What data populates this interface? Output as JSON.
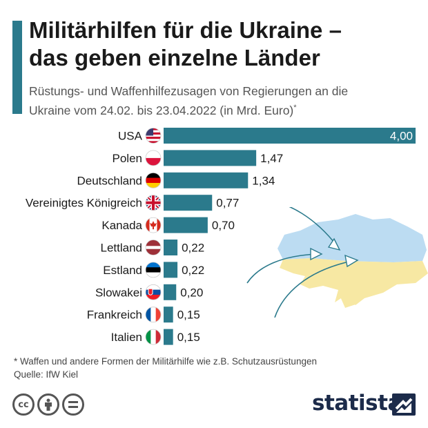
{
  "header": {
    "title_line1": "Militärhilfen für die Ukraine –",
    "title_line2": "das geben einzelne Länder",
    "subtitle_line1": "Rüstungs- und Waffenhilfezusagen von Regierungen an die",
    "subtitle_line2": "Ukraine vom 24.02. bis 23.04.2022 (in Mrd. Euro)",
    "subtitle_mark": "*"
  },
  "chart_data": {
    "type": "bar",
    "orientation": "horizontal",
    "categories": [
      "USA",
      "Polen",
      "Deutschland",
      "Vereinigtes Königreich",
      "Kanada",
      "Lettland",
      "Estland",
      "Slowakei",
      "Frankreich",
      "Italien"
    ],
    "values": [
      4.0,
      1.47,
      1.34,
      0.77,
      0.7,
      0.22,
      0.22,
      0.2,
      0.15,
      0.15
    ],
    "value_labels": [
      "4,00",
      "1,47",
      "1,34",
      "0,77",
      "0,70",
      "0,22",
      "0,22",
      "0,20",
      "0,15",
      "0,15"
    ],
    "flags": [
      "us-flag-icon",
      "pl-flag-icon",
      "de-flag-icon",
      "gb-flag-icon",
      "ca-flag-icon",
      "lv-flag-icon",
      "ee-flag-icon",
      "sk-flag-icon",
      "fr-flag-icon",
      "it-flag-icon"
    ],
    "xlim": [
      0,
      4
    ],
    "bar_color": "#2b7a8c",
    "grid": false
  },
  "footer": {
    "footnote": "* Waffen und andere Formen der Militärhilfe wie z.B. Schutzausrüstungen",
    "source": "Quelle: IfW Kiel",
    "brand": "statista"
  },
  "license_icons": [
    "cc-icon",
    "attribution-icon",
    "no-derivatives-icon"
  ],
  "colors": {
    "accent": "#2b7a8c",
    "map_blue": "#bcdcf2",
    "map_yellow": "#f7e8a3",
    "brand": "#1c2b4a"
  }
}
